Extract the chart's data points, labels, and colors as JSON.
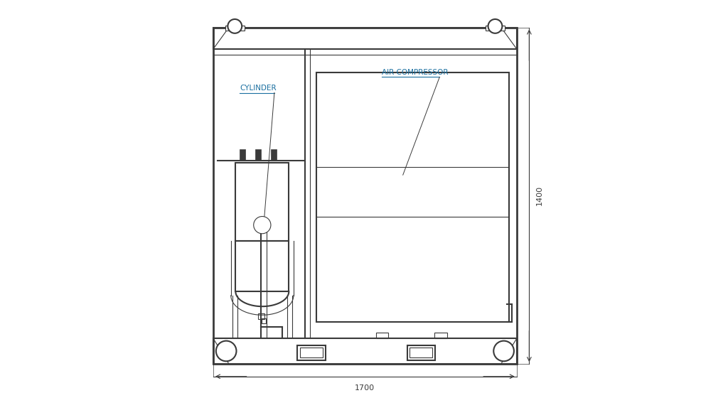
{
  "bg_color": "#ffffff",
  "line_color": "#3a3a3a",
  "label_color": "#1a6fa0",
  "dim_color": "#3a3a3a",
  "label_cylinder": "CYLINDER",
  "label_air_compressor": "AIR COMPRESSOR",
  "dim_width": "1700",
  "dim_height": "1400",
  "ox": 0.115,
  "oy": 0.07,
  "ow": 0.775,
  "oh": 0.86
}
